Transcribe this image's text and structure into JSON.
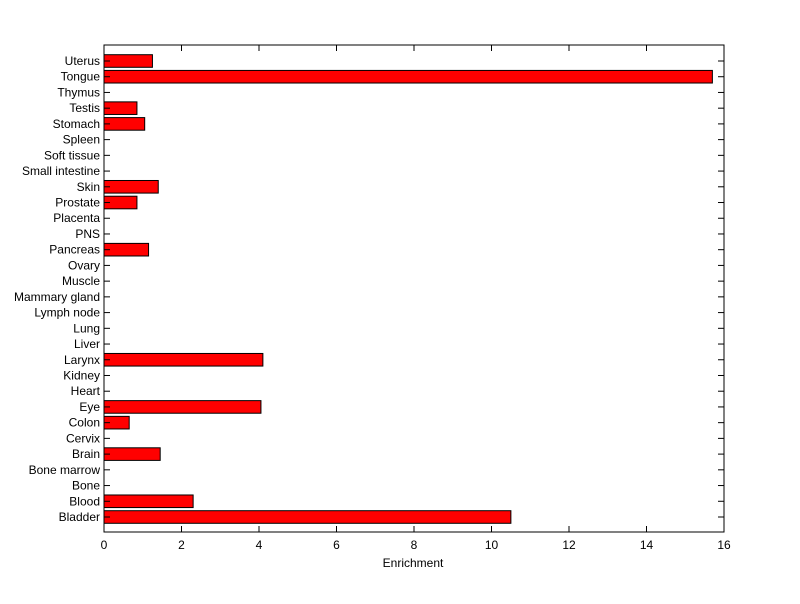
{
  "chart_data": {
    "type": "bar",
    "orientation": "horizontal",
    "title": "",
    "xlabel": "Enrichment",
    "ylabel": "",
    "xlim": [
      0,
      16
    ],
    "x_ticks": [
      0,
      2,
      4,
      6,
      8,
      10,
      12,
      14,
      16
    ],
    "grid": false,
    "bar_color": "#ff0000",
    "bar_edge_color": "#000000",
    "categories": [
      "Bladder",
      "Blood",
      "Bone",
      "Bone marrow",
      "Brain",
      "Cervix",
      "Colon",
      "Eye",
      "Heart",
      "Kidney",
      "Larynx",
      "Liver",
      "Lung",
      "Lymph node",
      "Mammary gland",
      "Muscle",
      "Ovary",
      "Pancreas",
      "PNS",
      "Placenta",
      "Prostate",
      "Skin",
      "Small intestine",
      "Soft tissue",
      "Spleen",
      "Stomach",
      "Testis",
      "Thymus",
      "Tongue",
      "Uterus"
    ],
    "values": [
      10.5,
      2.3,
      0,
      0,
      1.45,
      0,
      0.65,
      4.05,
      0,
      0,
      4.1,
      0,
      0,
      0,
      0,
      0,
      0,
      1.15,
      0,
      0,
      0.85,
      1.4,
      0,
      0,
      0,
      1.05,
      0.85,
      0,
      15.7,
      1.25
    ]
  }
}
